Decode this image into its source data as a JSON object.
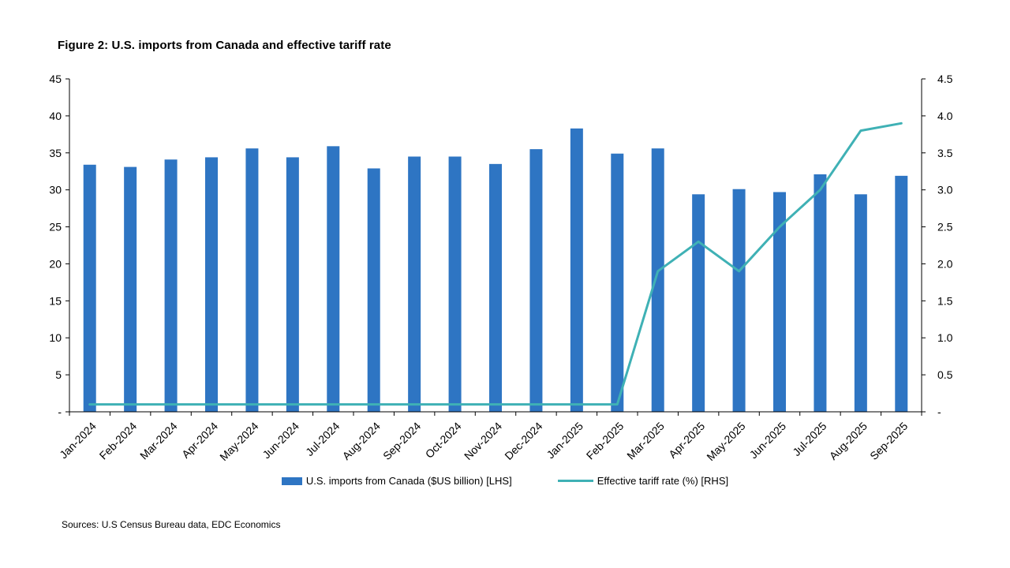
{
  "title": "Figure 2: U.S. imports from Canada and effective tariff rate",
  "source_note": "Sources: U.S Census Bureau data, EDC Economics",
  "colors": {
    "bar": "#2E75C3",
    "line": "#3FB1B5",
    "axis": "#000000",
    "background": "#FFFFFF"
  },
  "chart_data": {
    "type": "bar",
    "combo": "bar+line",
    "title": "Figure 2: U.S. imports from Canada and effective tariff rate",
    "grid": false,
    "legend_position": "bottom",
    "categories": [
      "Jan-2024",
      "Feb-2024",
      "Mar-2024",
      "Apr-2024",
      "May-2024",
      "Jun-2024",
      "Jul-2024",
      "Aug-2024",
      "Sep-2024",
      "Oct-2024",
      "Nov-2024",
      "Dec-2024",
      "Jan-2025",
      "Feb-2025",
      "Mar-2025",
      "Apr-2025",
      "May-2025",
      "Jun-2025",
      "Jul-2025",
      "Aug-2025",
      "Sep-2025"
    ],
    "series": [
      {
        "name": "U.S. imports from Canada ($US billion) [LHS]",
        "type": "bar",
        "axis": "left",
        "values": [
          33.4,
          33.1,
          34.1,
          34.4,
          35.6,
          34.4,
          35.9,
          32.9,
          34.5,
          34.5,
          33.5,
          35.5,
          38.3,
          34.9,
          35.6,
          29.4,
          30.1,
          29.7,
          32.1,
          29.4,
          31.9
        ]
      },
      {
        "name": "Effective tariff rate (%) [RHS]",
        "type": "line",
        "axis": "right",
        "values": [
          0.1,
          0.1,
          0.1,
          0.1,
          0.1,
          0.1,
          0.1,
          0.1,
          0.1,
          0.1,
          0.1,
          0.1,
          0.1,
          0.1,
          1.9,
          2.3,
          1.9,
          2.5,
          3.0,
          3.8,
          3.9
        ]
      }
    ],
    "left_axis": {
      "min": 0,
      "max": 45,
      "step": 0.5,
      "tick_step": 5,
      "tick_labels": [
        "-",
        "5",
        "10",
        "15",
        "20",
        "25",
        "30",
        "35",
        "40",
        "45"
      ]
    },
    "right_axis": {
      "min": 0,
      "max": 4.5,
      "step": 0.5,
      "tick_step": 0.5,
      "tick_labels": [
        "-",
        "0.5",
        "1.0",
        "1.5",
        "2.0",
        "2.5",
        "3.0",
        "3.5",
        "4.0",
        "4.5"
      ]
    }
  }
}
